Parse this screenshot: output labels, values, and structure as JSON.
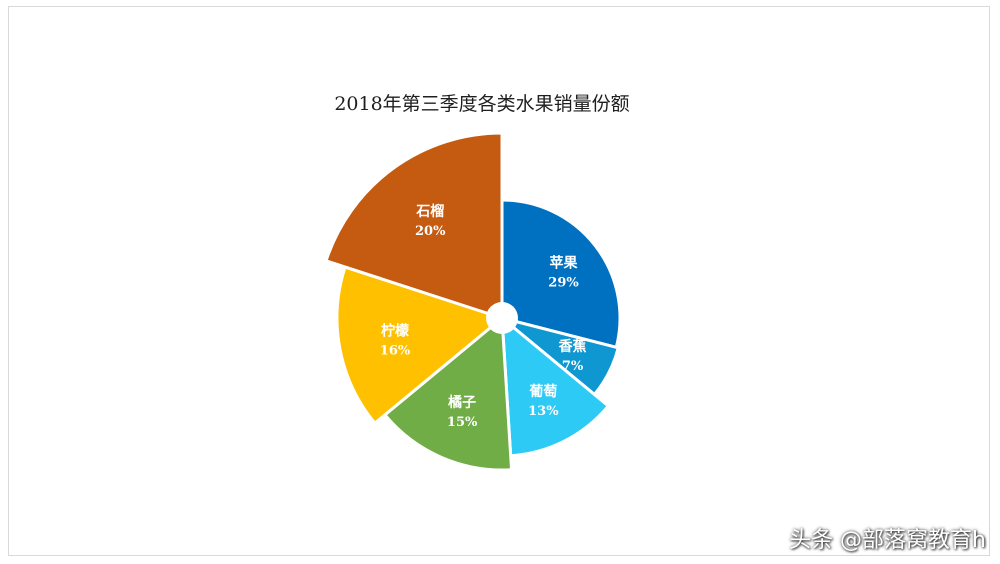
{
  "chart_data": {
    "type": "pie",
    "title": "2018年第三季度各类水果销量份额",
    "slices": [
      {
        "label": "苹果",
        "value": 29,
        "value_label": "29%",
        "color": "#0070C0"
      },
      {
        "label": "香蕉",
        "value": 7,
        "value_label": "7%",
        "color": "#0E97D0"
      },
      {
        "label": "葡萄",
        "value": 13,
        "value_label": "13%",
        "color": "#2ECAF6"
      },
      {
        "label": "橘子",
        "value": 15,
        "value_label": "15%",
        "color": "#70AD47"
      },
      {
        "label": "柠檬",
        "value": 16,
        "value_label": "16%",
        "color": "#FFC000"
      },
      {
        "label": "石榴",
        "value": 20,
        "value_label": "20%",
        "color": "#C55A11"
      }
    ],
    "legend": "none",
    "style": "variable-radius pie with center hole"
  },
  "watermark": "头条 @部落窝教育h"
}
